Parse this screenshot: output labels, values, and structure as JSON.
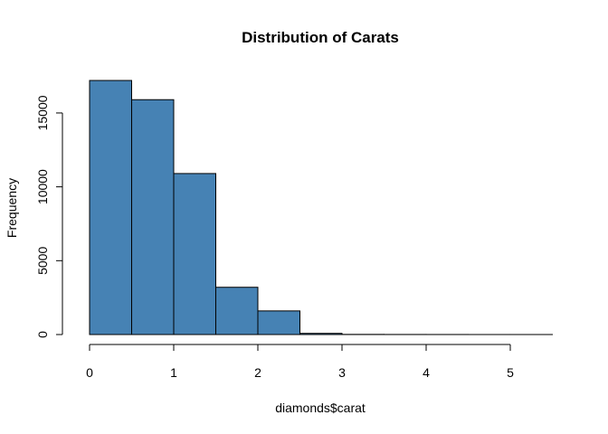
{
  "chart_data": {
    "type": "bar",
    "subtype": "histogram",
    "title": "Distribution of Carats",
    "xlabel": "diamonds$carat",
    "ylabel": "Frequency",
    "bin_edges": [
      0,
      0.5,
      1,
      1.5,
      2,
      2.5,
      3,
      3.5,
      4,
      4.5,
      5,
      5.5
    ],
    "values": [
      17200,
      15900,
      10900,
      3200,
      1600,
      80,
      10,
      5,
      3,
      1,
      1
    ],
    "xlim": [
      0,
      5.5
    ],
    "ylim": [
      0,
      17200
    ],
    "x_ticks": [
      "0",
      "1",
      "2",
      "3",
      "4",
      "5"
    ],
    "y_ticks": [
      "0",
      "5000",
      "10000",
      "15000"
    ],
    "bar_color": "#4682B4",
    "bar_border_color": "#000000",
    "grid": false,
    "legend": "none"
  }
}
